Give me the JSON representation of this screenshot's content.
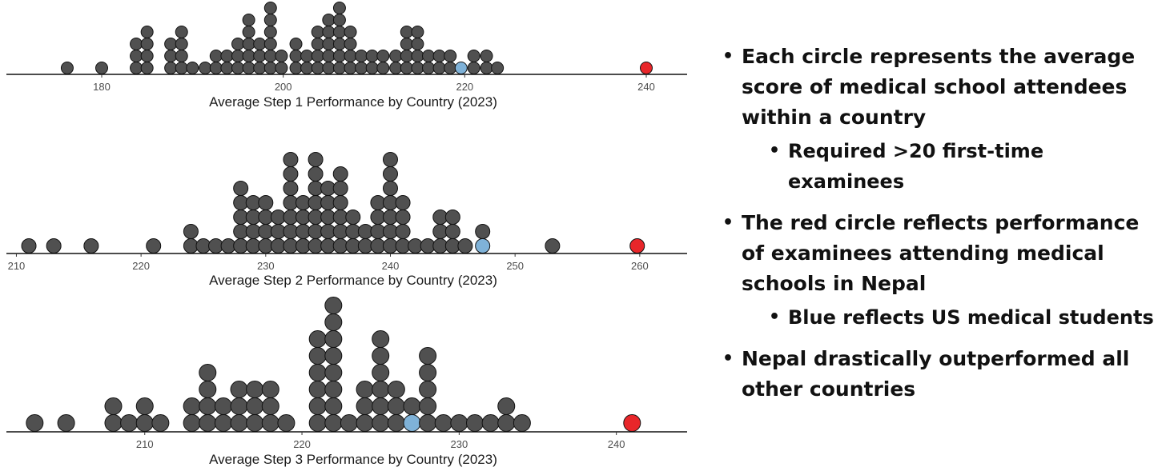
{
  "chart_data": [
    {
      "type": "dotplot",
      "xlabel": "Average Step 1 Performance by Country (2023)",
      "xlim": [
        169.5,
        244.5
      ],
      "ticks": [
        180,
        200,
        220,
        240
      ],
      "bin_width": 1.9,
      "stacks": [
        {
          "x": 176.2,
          "n": 1
        },
        {
          "x": 180.0,
          "n": 1
        },
        {
          "x": 183.8,
          "n": 3
        },
        {
          "x": 185.0,
          "n": 4
        },
        {
          "x": 187.6,
          "n": 3
        },
        {
          "x": 188.8,
          "n": 4
        },
        {
          "x": 190.0,
          "n": 1
        },
        {
          "x": 191.4,
          "n": 1
        },
        {
          "x": 192.6,
          "n": 2
        },
        {
          "x": 193.8,
          "n": 2
        },
        {
          "x": 195.0,
          "n": 3
        },
        {
          "x": 196.2,
          "n": 5
        },
        {
          "x": 197.4,
          "n": 3
        },
        {
          "x": 198.6,
          "n": 6
        },
        {
          "x": 199.8,
          "n": 2
        },
        {
          "x": 201.4,
          "n": 3
        },
        {
          "x": 202.6,
          "n": 2
        },
        {
          "x": 203.8,
          "n": 4
        },
        {
          "x": 205.0,
          "n": 5
        },
        {
          "x": 206.2,
          "n": 6
        },
        {
          "x": 207.4,
          "n": 4
        },
        {
          "x": 208.6,
          "n": 2
        },
        {
          "x": 209.8,
          "n": 2
        },
        {
          "x": 211.0,
          "n": 2
        },
        {
          "x": 212.4,
          "n": 2
        },
        {
          "x": 213.6,
          "n": 4
        },
        {
          "x": 214.8,
          "n": 4
        },
        {
          "x": 216.0,
          "n": 2
        },
        {
          "x": 217.2,
          "n": 2
        },
        {
          "x": 218.4,
          "n": 2
        },
        {
          "x": 219.6,
          "n": 1,
          "highlight": "us"
        },
        {
          "x": 221.0,
          "n": 2
        },
        {
          "x": 222.4,
          "n": 2
        },
        {
          "x": 223.6,
          "n": 1
        },
        {
          "x": 240.0,
          "n": 1,
          "highlight": "nepal"
        }
      ]
    },
    {
      "type": "dotplot",
      "xlabel": "Average Step 2 Performance by Country (2023)",
      "xlim": [
        209.2,
        263.8
      ],
      "ticks": [
        210,
        220,
        230,
        240,
        250,
        260
      ],
      "bin_width": 1.0,
      "stacks": [
        {
          "x": 211.0,
          "n": 1
        },
        {
          "x": 213.0,
          "n": 1
        },
        {
          "x": 216.0,
          "n": 1
        },
        {
          "x": 221.0,
          "n": 1
        },
        {
          "x": 224.0,
          "n": 2
        },
        {
          "x": 225.0,
          "n": 1
        },
        {
          "x": 226.0,
          "n": 1
        },
        {
          "x": 227.0,
          "n": 1
        },
        {
          "x": 228.0,
          "n": 5
        },
        {
          "x": 229.0,
          "n": 4
        },
        {
          "x": 230.0,
          "n": 4
        },
        {
          "x": 231.0,
          "n": 3
        },
        {
          "x": 232.0,
          "n": 7
        },
        {
          "x": 233.0,
          "n": 4
        },
        {
          "x": 234.0,
          "n": 7
        },
        {
          "x": 235.0,
          "n": 5
        },
        {
          "x": 236.0,
          "n": 6
        },
        {
          "x": 237.0,
          "n": 3
        },
        {
          "x": 238.0,
          "n": 2
        },
        {
          "x": 239.0,
          "n": 4
        },
        {
          "x": 240.0,
          "n": 7
        },
        {
          "x": 241.0,
          "n": 4
        },
        {
          "x": 242.0,
          "n": 1
        },
        {
          "x": 243.0,
          "n": 1
        },
        {
          "x": 244.0,
          "n": 3
        },
        {
          "x": 245.0,
          "n": 3
        },
        {
          "x": 246.0,
          "n": 1
        },
        {
          "x": 247.4,
          "n": 1
        },
        {
          "x": 247.4,
          "n": 1,
          "highlight": "us",
          "level": 0
        },
        {
          "x": 253.0,
          "n": 1
        },
        {
          "x": 259.8,
          "n": 1,
          "highlight": "nepal"
        }
      ]
    },
    {
      "type": "dotplot",
      "xlabel": "Average Step 3 Performance by Country (2023)",
      "xlim": [
        201.2,
        244.5
      ],
      "ticks": [
        210,
        220,
        230,
        240
      ],
      "bin_width": 1.0,
      "stacks": [
        {
          "x": 203.0,
          "n": 1
        },
        {
          "x": 205.0,
          "n": 1
        },
        {
          "x": 208.0,
          "n": 2
        },
        {
          "x": 209.0,
          "n": 1
        },
        {
          "x": 210.0,
          "n": 2
        },
        {
          "x": 211.0,
          "n": 1
        },
        {
          "x": 213.0,
          "n": 2
        },
        {
          "x": 214.0,
          "n": 4
        },
        {
          "x": 215.0,
          "n": 2
        },
        {
          "x": 216.0,
          "n": 3
        },
        {
          "x": 217.0,
          "n": 3
        },
        {
          "x": 218.0,
          "n": 3
        },
        {
          "x": 219.0,
          "n": 1
        },
        {
          "x": 221.0,
          "n": 6
        },
        {
          "x": 222.0,
          "n": 8
        },
        {
          "x": 223.0,
          "n": 1
        },
        {
          "x": 224.0,
          "n": 3
        },
        {
          "x": 225.0,
          "n": 6
        },
        {
          "x": 226.0,
          "n": 3
        },
        {
          "x": 227.0,
          "n": 1
        },
        {
          "x": 227.0,
          "n": 1,
          "highlight": "us",
          "level": 0
        },
        {
          "x": 228.0,
          "n": 5
        },
        {
          "x": 229.0,
          "n": 1
        },
        {
          "x": 230.0,
          "n": 1
        },
        {
          "x": 231.0,
          "n": 1
        },
        {
          "x": 232.0,
          "n": 1
        },
        {
          "x": 233.0,
          "n": 2
        },
        {
          "x": 234.0,
          "n": 1
        },
        {
          "x": 241.0,
          "n": 1,
          "highlight": "nepal"
        }
      ]
    }
  ],
  "colors": {
    "dot": "#505050",
    "dot_stroke": "#111111",
    "us": "#7fb2d8",
    "nepal": "#e8262a",
    "axis": "#111111",
    "text": "#111111"
  },
  "bullets": [
    {
      "level": 1,
      "text": "Each circle represents the average score of medical school attendees within a country"
    },
    {
      "level": 2,
      "text": "Required >20 first-time examinees"
    },
    {
      "level": 1,
      "text": "The red circle reflects performance of examinees attending medical schools in Nepal"
    },
    {
      "level": 2,
      "text": "Blue reflects US medical students"
    },
    {
      "level": 1,
      "text": "Nepal drastically outperformed all other countries"
    }
  ],
  "bullet_glyph": "•"
}
